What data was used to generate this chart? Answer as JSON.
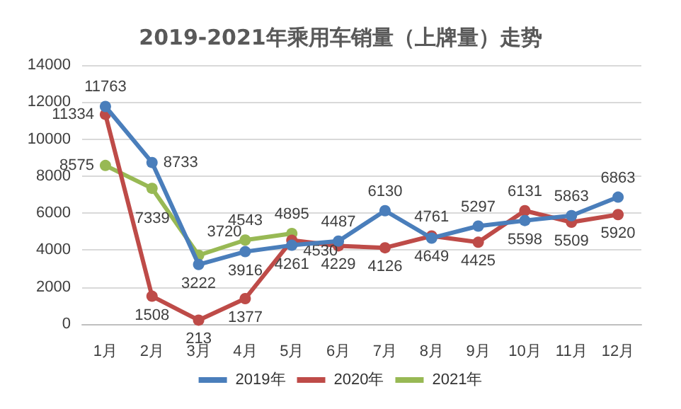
{
  "chart_data": {
    "type": "line",
    "title": "2019-2021年乘用车销量（上牌量）走势",
    "categories": [
      "1月",
      "2月",
      "3月",
      "4月",
      "5月",
      "6月",
      "7月",
      "8月",
      "9月",
      "10月",
      "11月",
      "12月"
    ],
    "series": [
      {
        "name": "2019年",
        "color": "#4a7ebb",
        "values": [
          11763,
          8733,
          3222,
          3916,
          4261,
          4487,
          6130,
          4649,
          5297,
          5598,
          5863,
          6863
        ]
      },
      {
        "name": "2020年",
        "color": "#be4b48",
        "values": [
          11334,
          1508,
          213,
          1377,
          4530,
          4229,
          4126,
          4761,
          4425,
          6131,
          5509,
          5920
        ]
      },
      {
        "name": "2021年",
        "color": "#98b954",
        "values": [
          8575,
          7339,
          3720,
          4543,
          4895,
          null,
          null,
          null,
          null,
          null,
          null,
          null
        ]
      }
    ],
    "ylim": [
      0,
      14000
    ],
    "yticks": [
      0,
      2000,
      4000,
      6000,
      8000,
      10000,
      12000,
      14000
    ],
    "grid": "y",
    "legend": "bottom",
    "marker": "circle",
    "line_style": "solid",
    "data_labels": true
  }
}
